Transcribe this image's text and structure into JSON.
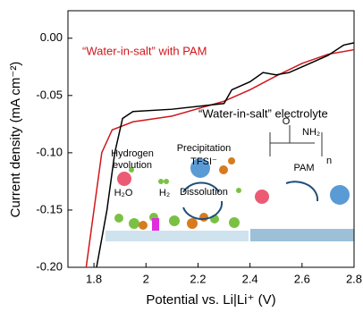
{
  "chart_data": {
    "type": "line",
    "x_label": "Potential vs. Li|Li⁺ (V)",
    "y_label": "Current density (mA cm⁻²)",
    "xlim": [
      1.7,
      2.8
    ],
    "ylim": [
      -0.2,
      0.024
    ],
    "xticks": [
      1.8,
      2.0,
      2.2,
      2.4,
      2.6,
      2.8
    ],
    "yticks": [
      {
        "value": -0.2,
        "label": "-0.20"
      },
      {
        "value": -0.15,
        "label": "-0.15"
      },
      {
        "value": -0.1,
        "label": "-0.10"
      },
      {
        "value": -0.05,
        "label": "-0.05"
      },
      {
        "value": 0,
        "label": "0.00"
      }
    ],
    "series": [
      {
        "name": "“Water-in-salt” with PAM",
        "color": "#d0161b",
        "x": [
          1.77,
          1.8,
          1.83,
          1.87,
          1.95,
          2.1,
          2.3,
          2.4,
          2.5,
          2.6,
          2.7,
          2.8
        ],
        "values": [
          -0.2,
          -0.15,
          -0.1,
          -0.08,
          -0.073,
          -0.068,
          -0.055,
          -0.045,
          -0.033,
          -0.022,
          -0.014,
          -0.01
        ]
      },
      {
        "name": "“Water-in-salt” electrolyte",
        "color": "#000000",
        "x": [
          1.81,
          1.85,
          1.88,
          1.91,
          1.95,
          2.1,
          2.3,
          2.33,
          2.4,
          2.45,
          2.5,
          2.55,
          2.6,
          2.7,
          2.76,
          2.8
        ],
        "values": [
          -0.2,
          -0.15,
          -0.1,
          -0.07,
          -0.064,
          -0.062,
          -0.057,
          -0.045,
          -0.038,
          -0.03,
          -0.032,
          -0.03,
          -0.025,
          -0.015,
          -0.006,
          -0.004
        ]
      }
    ],
    "inset_labels": [
      "Hydrogen",
      "evolution",
      "H₂O",
      "H₂",
      "Precipitation",
      "TFSI⁻",
      "Dissolution",
      "PAM",
      "O",
      "NH₂",
      "n"
    ]
  }
}
